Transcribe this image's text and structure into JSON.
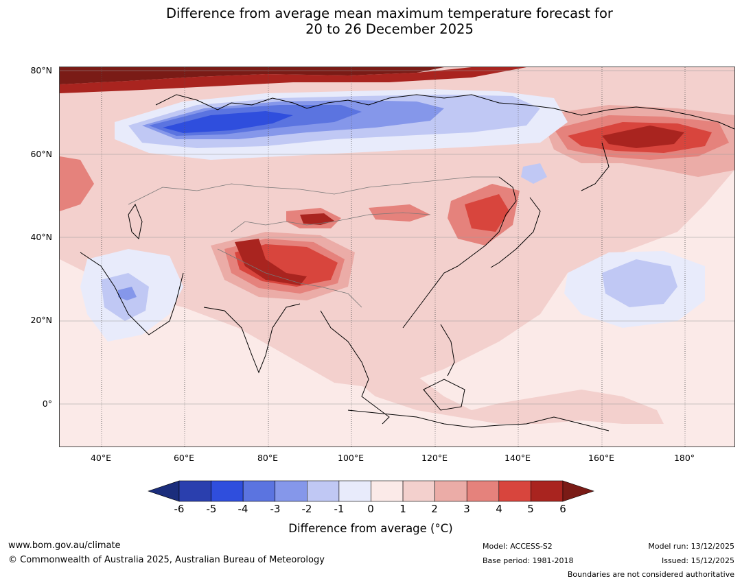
{
  "title": {
    "line1": "Difference from average mean maximum temperature forecast for",
    "line2": "20 to 26 December 2025"
  },
  "map": {
    "lat_labels": [
      "80°N",
      "60°N",
      "40°N",
      "20°N",
      "0°"
    ],
    "lon_labels": [
      "40°E",
      "60°E",
      "80°E",
      "100°E",
      "120°E",
      "140°E",
      "160°E",
      "180°"
    ],
    "extent": {
      "lon_min": 30,
      "lon_max": 192,
      "lat_min": -10,
      "lat_max": 81
    }
  },
  "colorbar": {
    "title": "Difference from average (°C)",
    "ticks": [
      "-6",
      "-5",
      "-4",
      "-3",
      "-2",
      "-1",
      "0",
      "1",
      "2",
      "3",
      "4",
      "5",
      "6"
    ],
    "colors": {
      "below_min": "#1b2d7c",
      "m6_m5": "#2a3fae",
      "m5_m4": "#2f4edd",
      "m4_m3": "#5b74e0",
      "m3_m2": "#8597ea",
      "m2_m1": "#c0c8f4",
      "m1_0": "#e8ebfb",
      "0_1": "#fbeae8",
      "1_2": "#f3d0cd",
      "2_3": "#ebaca7",
      "3_4": "#e5827c",
      "4_5": "#d8453d",
      "5_6": "#a9241f",
      "above_max": "#7a1b16"
    }
  },
  "footer": {
    "website": "www.bom.gov.au/climate",
    "copyright": "© Commonwealth of Australia 2025, Australian Bureau of Meteorology",
    "model": "Model: ACCESS-S2",
    "base_period": "Base period: 1981-2018",
    "model_run": "Model run: 13/12/2025",
    "issued": "Issued: 15/12/2025",
    "disclaimer": "Boundaries are not considered authoritative"
  }
}
